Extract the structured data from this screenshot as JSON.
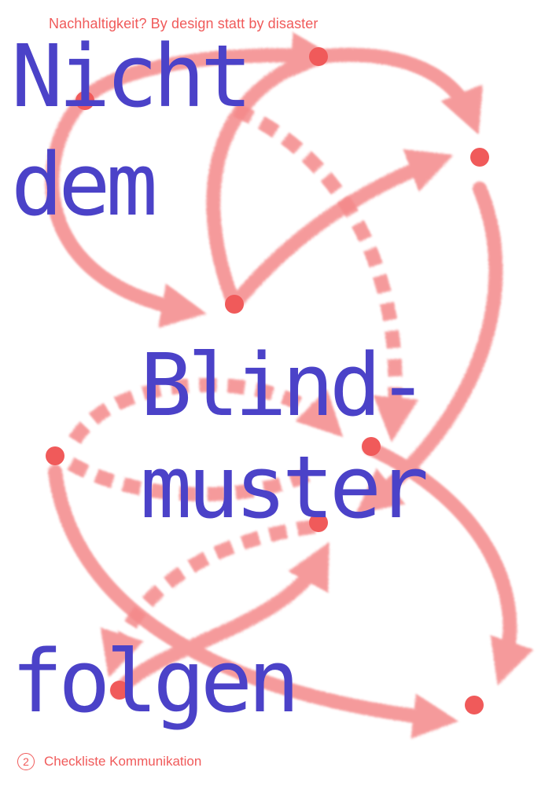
{
  "poster": {
    "kicker": "Nachhaltigkeit? By design statt by disaster",
    "headline": [
      "Nicht",
      "dem",
      "Blind-",
      "muster",
      "folgen"
    ],
    "footer": {
      "number": "2",
      "label": "Checkliste Kommunikation"
    },
    "colors": {
      "headline": "#4b42c8",
      "accent": "#f05a5a",
      "background": "#ffffff"
    }
  }
}
